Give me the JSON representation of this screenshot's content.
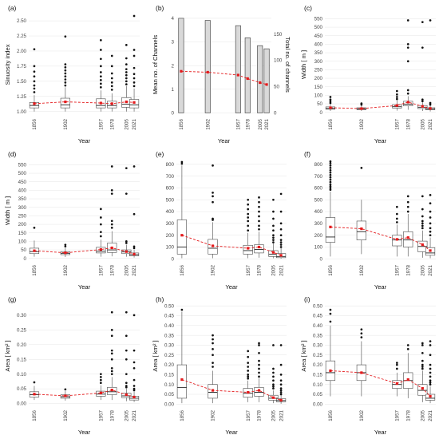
{
  "chart_data": [
    {
      "id": "a",
      "panel_label": "(a)",
      "type": "box",
      "xlabel": "Year",
      "ylabel": "Sinuosity index",
      "years": [
        "1856",
        "1902",
        "1957",
        "1978",
        "2005",
        "2021"
      ],
      "yticks": [
        1.0,
        1.25,
        1.5,
        1.75,
        2.0,
        2.25,
        2.5
      ],
      "ytick_decimals": 2,
      "ylim": [
        0.93,
        2.62
      ],
      "boxes": [
        {
          "q1": 1.06,
          "median": 1.1,
          "q3": 1.15,
          "lo": 1.0,
          "hi": 1.27,
          "mean": 1.13,
          "outliers": [
            1.32,
            1.38,
            1.43,
            1.5,
            1.58,
            1.66,
            1.75,
            2.03
          ]
        },
        {
          "q1": 1.06,
          "median": 1.11,
          "q3": 1.22,
          "lo": 1.0,
          "hi": 1.4,
          "mean": 1.16,
          "outliers": [
            1.43,
            1.48,
            1.53,
            1.58,
            1.63,
            1.68,
            1.73,
            1.78,
            2.24
          ]
        },
        {
          "q1": 1.06,
          "median": 1.1,
          "q3": 1.21,
          "lo": 1.0,
          "hi": 1.35,
          "mean": 1.14,
          "outliers": [
            1.4,
            1.46,
            1.52,
            1.58,
            1.65,
            1.75,
            1.87,
            2.02,
            2.18
          ]
        },
        {
          "q1": 1.06,
          "median": 1.1,
          "q3": 1.17,
          "lo": 1.0,
          "hi": 1.3,
          "mean": 1.13,
          "outliers": [
            1.36,
            1.42,
            1.48,
            1.55,
            1.63,
            1.75,
            1.92
          ]
        },
        {
          "q1": 1.07,
          "median": 1.12,
          "q3": 1.23,
          "lo": 1.0,
          "hi": 1.42,
          "mean": 1.16,
          "outliers": [
            1.45,
            1.5,
            1.55,
            1.6,
            1.65,
            1.7,
            1.78,
            1.88,
            2.1
          ]
        },
        {
          "q1": 1.06,
          "median": 1.11,
          "q3": 1.2,
          "lo": 1.0,
          "hi": 1.38,
          "mean": 1.15,
          "outliers": [
            1.42,
            1.48,
            1.55,
            1.62,
            1.72,
            1.92,
            2.02,
            2.58
          ]
        }
      ]
    },
    {
      "id": "b",
      "panel_label": "(b)",
      "type": "bar+line",
      "xlabel": "Year",
      "ylabel": "Mean no. of Channels",
      "ylabel_right": "Total no. of channels",
      "years": [
        "1856",
        "1902",
        "1957",
        "1978",
        "2005",
        "2021"
      ],
      "yticks": [
        0,
        1,
        2,
        3,
        4
      ],
      "ytick_decimals": 0,
      "ylim": [
        -0.12,
        4.2
      ],
      "yticks_right": [
        0,
        50,
        100,
        150
      ],
      "ylim_right": [
        -5.4,
        189
      ],
      "bars_total": [
        180,
        176,
        166,
        143,
        128,
        122
      ],
      "mean": [
        1.76,
        1.72,
        1.6,
        1.45,
        1.28,
        1.2
      ]
    },
    {
      "id": "c",
      "panel_label": "(c)",
      "type": "box",
      "xlabel": "Year",
      "ylabel": "Width [ m ]",
      "years": [
        "1856",
        "1902",
        "1957",
        "1978",
        "2005",
        "2021"
      ],
      "yticks": [
        0,
        50,
        100,
        150,
        200,
        250,
        300,
        350,
        400,
        450,
        500,
        550
      ],
      "ytick_decimals": 0,
      "ylim": [
        -20,
        580
      ],
      "boxes": [
        {
          "q1": 18,
          "median": 23,
          "q3": 32,
          "lo": 8,
          "hi": 50,
          "mean": 27,
          "outliers": [
            55,
            65,
            75,
            90
          ]
        },
        {
          "q1": 16,
          "median": 20,
          "q3": 27,
          "lo": 8,
          "hi": 40,
          "mean": 22,
          "outliers": [
            45,
            52
          ]
        },
        {
          "q1": 25,
          "median": 33,
          "q3": 45,
          "lo": 10,
          "hi": 70,
          "mean": 40,
          "outliers": [
            78,
            90,
            105,
            125
          ]
        },
        {
          "q1": 38,
          "median": 48,
          "q3": 65,
          "lo": 15,
          "hi": 95,
          "mean": 60,
          "outliers": [
            110,
            130,
            300,
            380,
            400,
            540
          ]
        },
        {
          "q1": 22,
          "median": 30,
          "q3": 40,
          "lo": 8,
          "hi": 58,
          "mean": 35,
          "outliers": [
            65,
            75,
            380,
            530
          ]
        },
        {
          "q1": 15,
          "median": 20,
          "q3": 27,
          "lo": 5,
          "hi": 40,
          "mean": 23,
          "outliers": [
            45,
            55,
            540
          ]
        }
      ]
    },
    {
      "id": "d",
      "panel_label": "(d)",
      "type": "box",
      "xlabel": "Year",
      "ylabel": "Width [ m ]",
      "years": [
        "1856",
        "1902",
        "1957",
        "1978",
        "2005",
        "2021"
      ],
      "yticks": [
        0,
        50,
        100,
        150,
        200,
        250,
        300,
        350,
        400,
        450,
        500,
        550
      ],
      "ytick_decimals": 0,
      "ylim": [
        -20,
        580
      ],
      "boxes": [
        {
          "q1": 28,
          "median": 40,
          "q3": 60,
          "lo": 10,
          "hi": 105,
          "mean": 45,
          "outliers": [
            180
          ]
        },
        {
          "q1": 22,
          "median": 30,
          "q3": 40,
          "lo": 8,
          "hi": 60,
          "mean": 33,
          "outliers": [
            70,
            80
          ]
        },
        {
          "q1": 32,
          "median": 42,
          "q3": 65,
          "lo": 10,
          "hi": 110,
          "mean": 52,
          "outliers": [
            130,
            155,
            200,
            240,
            290
          ]
        },
        {
          "q1": 35,
          "median": 50,
          "q3": 90,
          "lo": 12,
          "hi": 160,
          "mean": 62,
          "outliers": [
            180,
            200,
            220,
            380,
            400,
            540
          ]
        },
        {
          "q1": 28,
          "median": 38,
          "q3": 50,
          "lo": 10,
          "hi": 80,
          "mean": 40,
          "outliers": [
            90,
            100,
            380,
            530
          ]
        },
        {
          "q1": 15,
          "median": 22,
          "q3": 32,
          "lo": 5,
          "hi": 50,
          "mean": 25,
          "outliers": [
            60,
            70,
            260,
            540
          ]
        }
      ]
    },
    {
      "id": "e",
      "panel_label": "(e)",
      "type": "box",
      "xlabel": "Year",
      "ylabel": "",
      "years": [
        "1856",
        "1902",
        "1957",
        "1978",
        "2005",
        "2021"
      ],
      "yticks": [
        0,
        100,
        200,
        300,
        400,
        500,
        600,
        700,
        800
      ],
      "ytick_decimals": 0,
      "ylim": [
        -25,
        840
      ],
      "boxes": [
        {
          "q1": 40,
          "median": 100,
          "q3": 330,
          "lo": 5,
          "hi": 790,
          "mean": 200,
          "outliers": [
            805,
            820
          ]
        },
        {
          "q1": 40,
          "median": 90,
          "q3": 165,
          "lo": 5,
          "hi": 310,
          "mean": 110,
          "outliers": [
            330,
            340,
            480,
            530,
            560,
            790
          ]
        },
        {
          "q1": 40,
          "median": 70,
          "q3": 115,
          "lo": 5,
          "hi": 220,
          "mean": 90,
          "outliers": [
            240,
            280,
            320,
            350,
            380,
            420,
            460,
            500
          ]
        },
        {
          "q1": 50,
          "median": 80,
          "q3": 120,
          "lo": 10,
          "hi": 230,
          "mean": 100,
          "outliers": [
            250,
            280,
            320,
            360,
            400,
            440,
            480,
            520
          ]
        },
        {
          "q1": 20,
          "median": 40,
          "q3": 70,
          "lo": 5,
          "hi": 130,
          "mean": 55,
          "outliers": [
            140,
            160,
            180,
            200,
            240,
            280,
            340,
            400,
            500
          ]
        },
        {
          "q1": 10,
          "median": 20,
          "q3": 45,
          "lo": 2,
          "hi": 90,
          "mean": 30,
          "outliers": [
            100,
            120,
            140,
            160,
            200,
            250,
            300,
            400,
            550
          ]
        }
      ]
    },
    {
      "id": "f",
      "panel_label": "(f)",
      "type": "box",
      "xlabel": "Year",
      "ylabel": "",
      "years": [
        "1856",
        "1902",
        "1957",
        "1978",
        "2005",
        "2021"
      ],
      "yticks": [
        0,
        100,
        200,
        300,
        400,
        500,
        600,
        700,
        800
      ],
      "ytick_decimals": 0,
      "ylim": [
        -25,
        840
      ],
      "boxes": [
        {
          "q1": 140,
          "median": 185,
          "q3": 350,
          "lo": 20,
          "hi": 570,
          "mean": 270,
          "outliers": [
            585,
            600,
            615,
            630,
            650,
            670,
            690,
            710,
            730,
            750,
            770,
            790,
            810,
            825
          ]
        },
        {
          "q1": 160,
          "median": 230,
          "q3": 320,
          "lo": 40,
          "hi": 500,
          "mean": 255,
          "outliers": [
            770
          ]
        },
        {
          "q1": 110,
          "median": 160,
          "q3": 200,
          "lo": 20,
          "hi": 290,
          "mean": 165,
          "outliers": [
            310,
            340,
            380,
            440
          ]
        },
        {
          "q1": 100,
          "median": 160,
          "q3": 230,
          "lo": 20,
          "hi": 380,
          "mean": 180,
          "outliers": [
            400,
            440,
            480,
            530
          ]
        },
        {
          "q1": 60,
          "median": 105,
          "q3": 150,
          "lo": 10,
          "hi": 240,
          "mean": 120,
          "outliers": [
            260,
            280,
            300,
            320,
            360,
            420,
            530
          ]
        },
        {
          "q1": 30,
          "median": 50,
          "q3": 95,
          "lo": 5,
          "hi": 180,
          "mean": 70,
          "outliers": [
            200,
            230,
            260,
            300,
            350,
            400,
            470,
            540
          ]
        }
      ]
    },
    {
      "id": "g",
      "panel_label": "(g)",
      "type": "box",
      "xlabel": "Year",
      "ylabel": "Area [ km² ]",
      "years": [
        "1856",
        "1902",
        "1957",
        "1978",
        "2005",
        "2021"
      ],
      "yticks": [
        0.0,
        0.05,
        0.1,
        0.15,
        0.2,
        0.25,
        0.3
      ],
      "ytick_decimals": 2,
      "ylim": [
        -0.012,
        0.335
      ],
      "boxes": [
        {
          "q1": 0.022,
          "median": 0.03,
          "q3": 0.04,
          "lo": 0.012,
          "hi": 0.06,
          "mean": 0.032,
          "outliers": [
            0.072
          ]
        },
        {
          "q1": 0.018,
          "median": 0.023,
          "q3": 0.03,
          "lo": 0.01,
          "hi": 0.042,
          "mean": 0.026,
          "outliers": [
            0.048
          ]
        },
        {
          "q1": 0.025,
          "median": 0.032,
          "q3": 0.042,
          "lo": 0.012,
          "hi": 0.062,
          "mean": 0.036,
          "outliers": [
            0.07,
            0.08,
            0.09,
            0.1
          ]
        },
        {
          "q1": 0.03,
          "median": 0.04,
          "q3": 0.055,
          "lo": 0.012,
          "hi": 0.09,
          "mean": 0.046,
          "outliers": [
            0.1,
            0.11,
            0.12,
            0.15,
            0.17,
            0.18,
            0.23,
            0.25,
            0.31
          ]
        },
        {
          "q1": 0.02,
          "median": 0.026,
          "q3": 0.035,
          "lo": 0.008,
          "hi": 0.05,
          "mean": 0.03,
          "outliers": [
            0.055,
            0.06,
            0.07,
            0.1,
            0.15,
            0.18,
            0.23,
            0.31
          ]
        },
        {
          "q1": 0.012,
          "median": 0.018,
          "q3": 0.025,
          "lo": 0.005,
          "hi": 0.04,
          "mean": 0.022,
          "outliers": [
            0.045,
            0.05,
            0.06,
            0.08,
            0.12,
            0.14,
            0.18,
            0.3
          ]
        }
      ]
    },
    {
      "id": "h",
      "panel_label": "(h)",
      "type": "box",
      "xlabel": "Year",
      "ylabel": "Area [ km² ]",
      "years": [
        "1856",
        "1902",
        "1957",
        "1978",
        "2005",
        "2021"
      ],
      "yticks": [
        0.0,
        0.05,
        0.1,
        0.15,
        0.2,
        0.25,
        0.3,
        0.35,
        0.4,
        0.45,
        0.5
      ],
      "ytick_decimals": 2,
      "ylim": [
        -0.015,
        0.505
      ],
      "boxes": [
        {
          "q1": 0.03,
          "median": 0.085,
          "q3": 0.2,
          "lo": 0.005,
          "hi": 0.47,
          "mean": 0.125,
          "outliers": [
            0.48
          ]
        },
        {
          "q1": 0.03,
          "median": 0.06,
          "q3": 0.1,
          "lo": 0.005,
          "hi": 0.17,
          "mean": 0.07,
          "outliers": [
            0.19,
            0.21,
            0.25,
            0.28,
            0.31,
            0.33,
            0.35
          ]
        },
        {
          "q1": 0.035,
          "median": 0.055,
          "q3": 0.08,
          "lo": 0.01,
          "hi": 0.12,
          "mean": 0.06,
          "outliers": [
            0.13,
            0.14,
            0.15,
            0.17,
            0.19,
            0.21,
            0.24,
            0.27
          ]
        },
        {
          "q1": 0.04,
          "median": 0.06,
          "q3": 0.085,
          "lo": 0.01,
          "hi": 0.13,
          "mean": 0.07,
          "outliers": [
            0.14,
            0.16,
            0.18,
            0.2,
            0.22,
            0.26,
            0.3,
            0.31
          ]
        },
        {
          "q1": 0.02,
          "median": 0.03,
          "q3": 0.045,
          "lo": 0.005,
          "hi": 0.07,
          "mean": 0.033,
          "outliers": [
            0.08,
            0.09,
            0.1,
            0.12,
            0.14,
            0.16,
            0.18,
            0.3
          ]
        },
        {
          "q1": 0.012,
          "median": 0.018,
          "q3": 0.028,
          "lo": 0.002,
          "hi": 0.045,
          "mean": 0.02,
          "outliers": [
            0.05,
            0.06,
            0.07,
            0.08,
            0.1,
            0.12,
            0.15,
            0.2,
            0.3
          ]
        }
      ]
    },
    {
      "id": "i",
      "panel_label": "(i)",
      "type": "box",
      "xlabel": "Year",
      "ylabel": "Area [ km² ]",
      "years": [
        "1856",
        "1902",
        "1957",
        "1978",
        "2005",
        "2021"
      ],
      "yticks": [
        0.0,
        0.05,
        0.1,
        0.15,
        0.2,
        0.25,
        0.3,
        0.35,
        0.4,
        0.45,
        0.5
      ],
      "ytick_decimals": 2,
      "ylim": [
        -0.015,
        0.505
      ],
      "boxes": [
        {
          "q1": 0.12,
          "median": 0.16,
          "q3": 0.22,
          "lo": 0.04,
          "hi": 0.4,
          "mean": 0.17,
          "outliers": [
            0.42,
            0.46,
            0.48
          ]
        },
        {
          "q1": 0.12,
          "median": 0.16,
          "q3": 0.2,
          "lo": 0.04,
          "hi": 0.32,
          "mean": 0.16,
          "outliers": [
            0.34,
            0.36,
            0.38
          ]
        },
        {
          "q1": 0.08,
          "median": 0.1,
          "q3": 0.12,
          "lo": 0.04,
          "hi": 0.16,
          "mean": 0.105,
          "outliers": [
            0.18,
            0.2,
            0.21
          ]
        },
        {
          "q1": 0.08,
          "median": 0.12,
          "q3": 0.16,
          "lo": 0.03,
          "hi": 0.26,
          "mean": 0.125,
          "outliers": [
            0.28,
            0.3
          ]
        },
        {
          "q1": 0.045,
          "median": 0.07,
          "q3": 0.1,
          "lo": 0.01,
          "hi": 0.17,
          "mean": 0.08,
          "outliers": [
            0.18,
            0.19,
            0.2,
            0.22,
            0.26,
            0.3,
            0.31
          ]
        },
        {
          "q1": 0.02,
          "median": 0.03,
          "q3": 0.05,
          "lo": 0.005,
          "hi": 0.09,
          "mean": 0.04,
          "outliers": [
            0.1,
            0.11,
            0.12,
            0.14,
            0.16,
            0.18,
            0.2,
            0.25,
            0.3,
            0.32
          ]
        }
      ]
    }
  ]
}
